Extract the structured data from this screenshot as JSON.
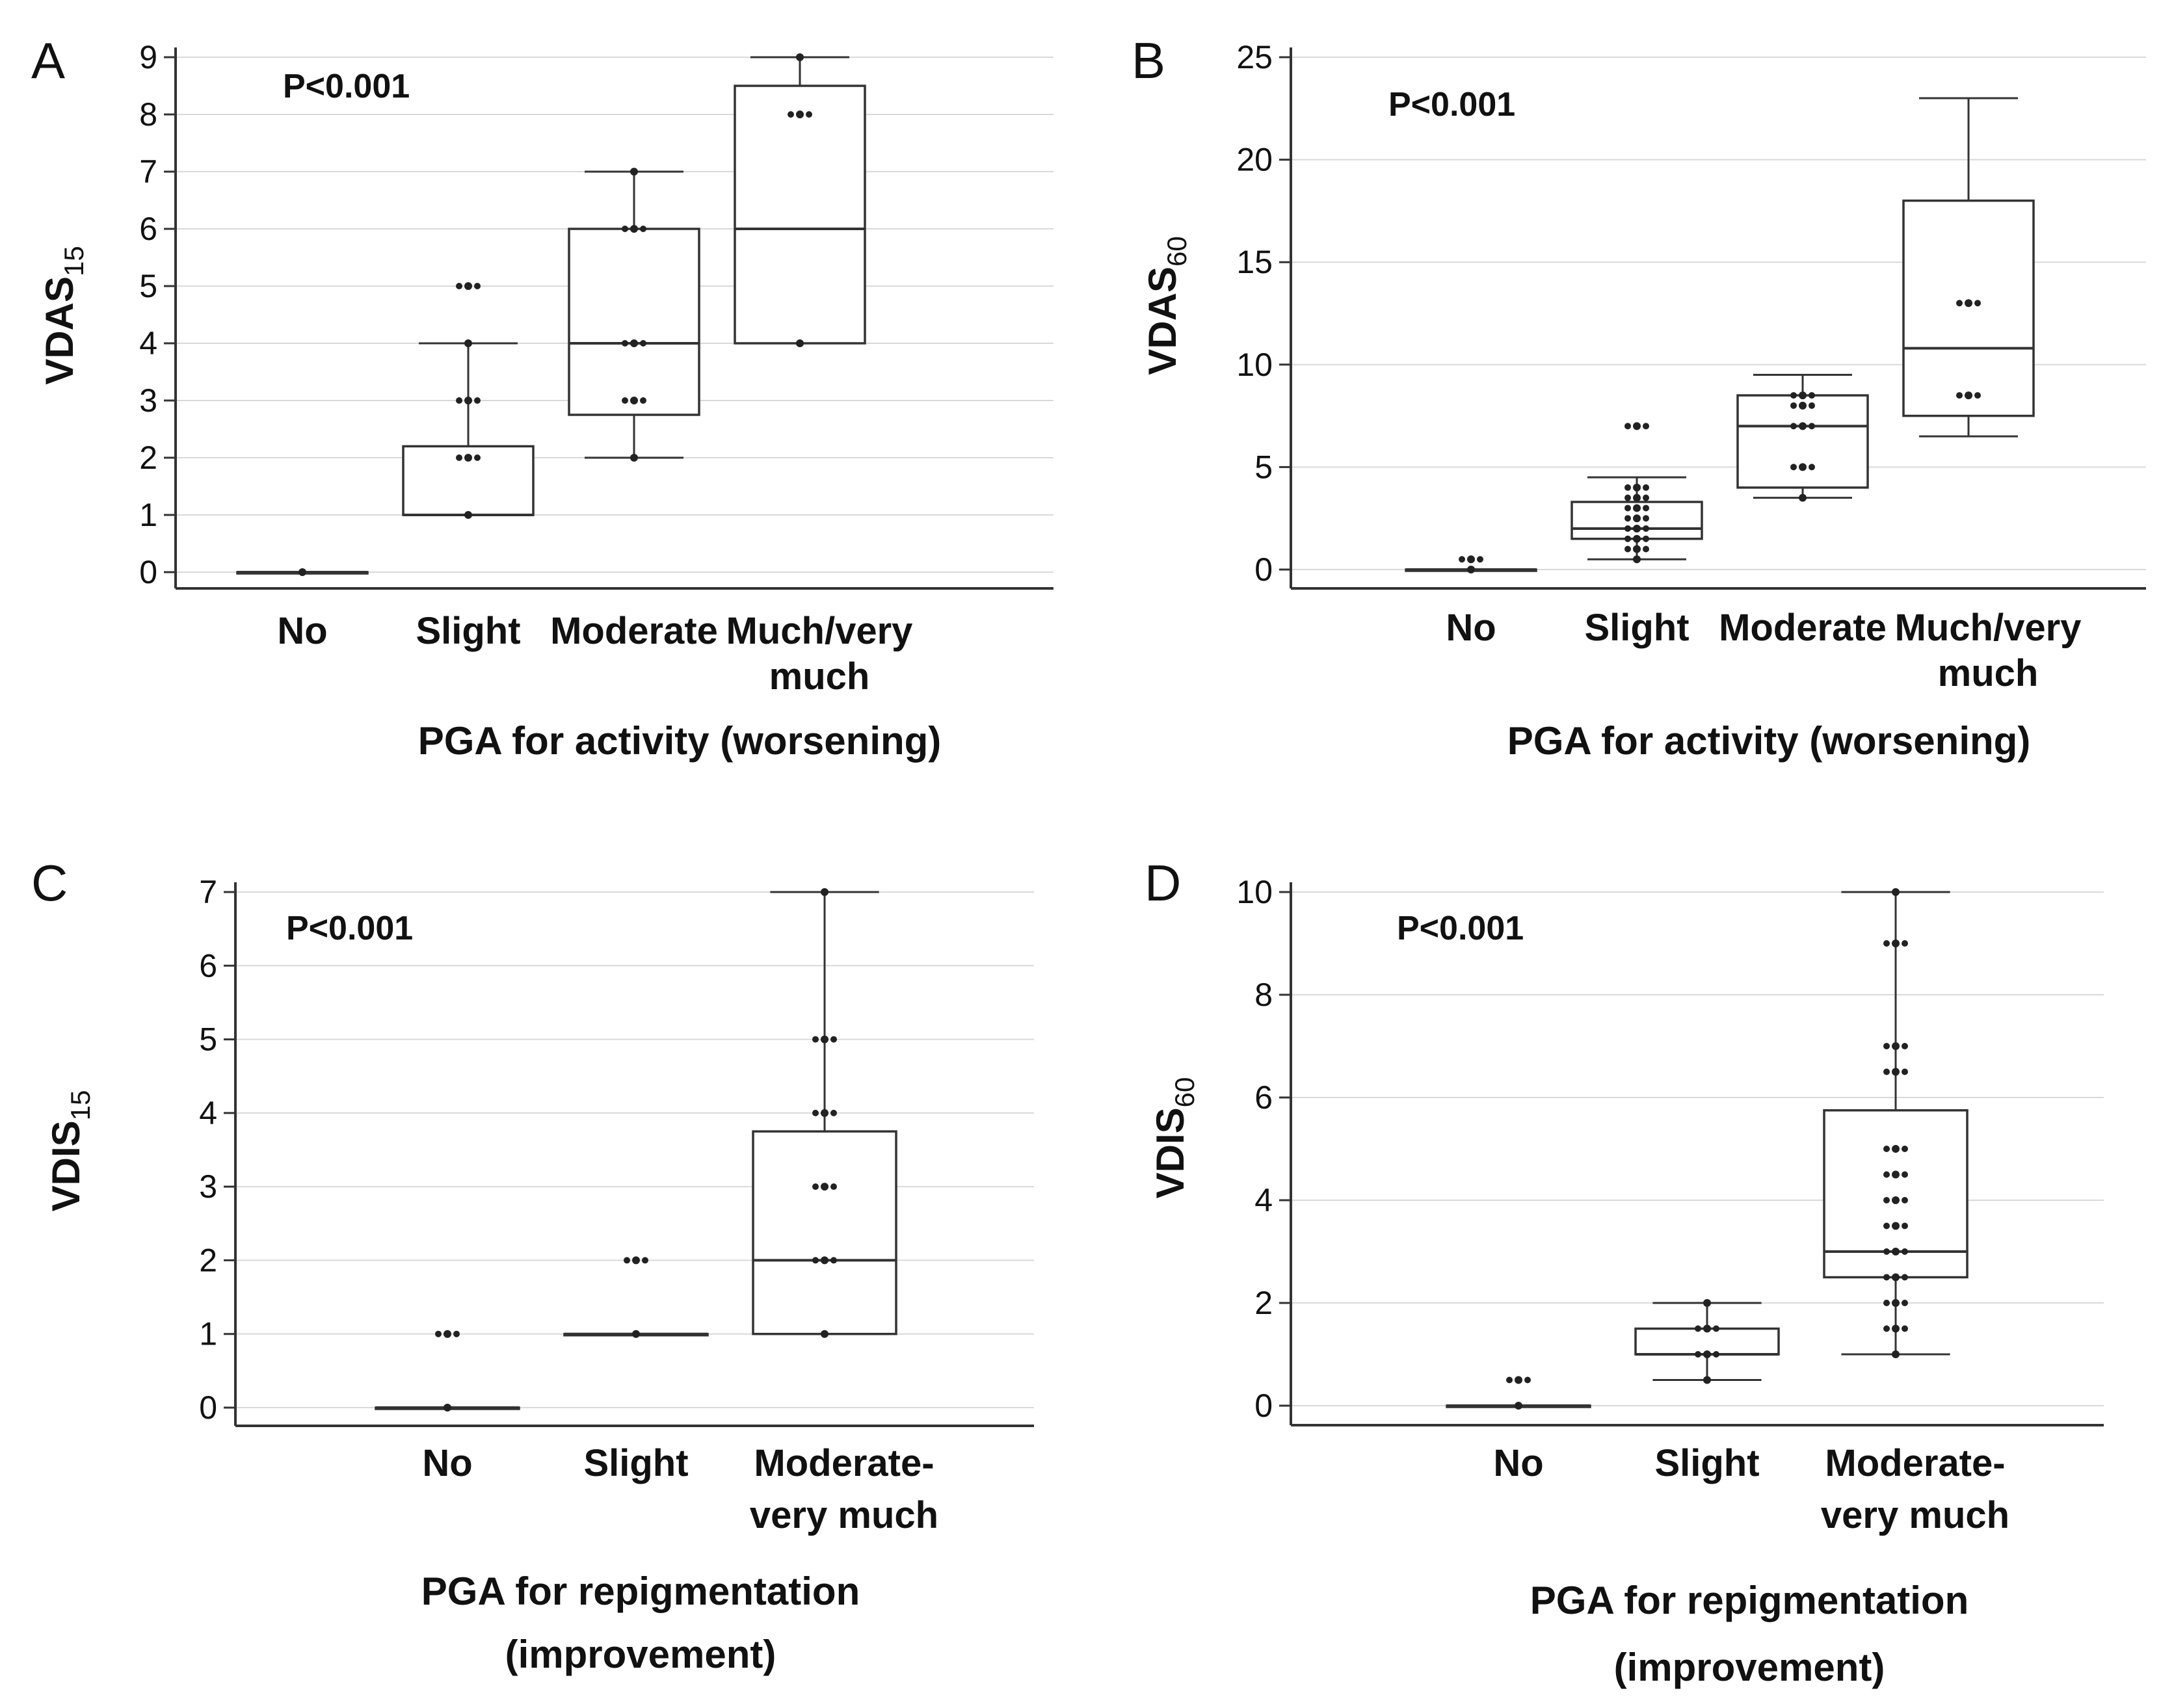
{
  "chart_data": [
    {
      "type": "box",
      "panel": "A",
      "title": "",
      "p_value": "P<0.001",
      "ylabel_main": "VDAS",
      "ylabel_sub": "15",
      "ylim": [
        0,
        9
      ],
      "yticks": [
        0,
        1,
        2,
        3,
        4,
        5,
        6,
        7,
        8,
        9
      ],
      "xlabel_lines": [
        "PGA for activity (worsening)"
      ],
      "categories": [
        {
          "label": [
            "No"
          ],
          "min": 0,
          "q1": 0,
          "median": 0,
          "q3": 0,
          "max": 0,
          "points": [
            0
          ]
        },
        {
          "label": [
            "Slight"
          ],
          "min": 1,
          "q1": 1,
          "median": 1,
          "q3": 2.2,
          "max": 4,
          "points": [
            1,
            2,
            3,
            4,
            5
          ]
        },
        {
          "label": [
            "Moderate"
          ],
          "min": 2,
          "q1": 2.75,
          "median": 4,
          "q3": 6,
          "max": 7,
          "points": [
            2,
            3,
            4,
            6,
            7
          ]
        },
        {
          "label": [
            "Much/very",
            "much"
          ],
          "min": 4,
          "q1": 4,
          "median": 6,
          "q3": 8.5,
          "max": 9,
          "points": [
            4,
            8,
            9
          ]
        }
      ]
    },
    {
      "type": "box",
      "panel": "B",
      "title": "",
      "p_value": "P<0.001",
      "ylabel_main": "VDAS",
      "ylabel_sub": "60",
      "ylim": [
        0,
        25
      ],
      "yticks": [
        0,
        5,
        10,
        15,
        20,
        25
      ],
      "xlabel_lines": [
        "PGA for activity (worsening)"
      ],
      "categories": [
        {
          "label": [
            "No"
          ],
          "min": 0,
          "q1": 0,
          "median": 0,
          "q3": 0,
          "max": 0,
          "points": [
            0,
            0.5
          ]
        },
        {
          "label": [
            "Slight"
          ],
          "min": 0.5,
          "q1": 1.5,
          "median": 2,
          "q3": 3.3,
          "max": 4.5,
          "points": [
            0.5,
            1,
            1.5,
            2,
            2.5,
            3,
            3.5,
            4,
            7
          ]
        },
        {
          "label": [
            "Moderate"
          ],
          "min": 3.5,
          "q1": 4,
          "median": 7,
          "q3": 8.5,
          "max": 9.5,
          "points": [
            3.5,
            5,
            7,
            8,
            8.5
          ]
        },
        {
          "label": [
            "Much/very",
            "much"
          ],
          "min": 6.5,
          "q1": 7.5,
          "median": 10.8,
          "q3": 18,
          "max": 23,
          "points": [
            8.5,
            13
          ]
        }
      ]
    },
    {
      "type": "box",
      "panel": "C",
      "title": "",
      "p_value": "P<0.001",
      "ylabel_main": "VDIS",
      "ylabel_sub": "15",
      "ylim": [
        0,
        7
      ],
      "yticks": [
        0,
        1,
        2,
        3,
        4,
        5,
        6,
        7
      ],
      "xlabel_lines": [
        "PGA for repigmentation",
        "(improvement)"
      ],
      "categories": [
        {
          "label": [
            "No"
          ],
          "min": 0,
          "q1": 0,
          "median": 0,
          "q3": 0,
          "max": 0,
          "points": [
            0,
            1
          ]
        },
        {
          "label": [
            "Slight"
          ],
          "min": 1,
          "q1": 1,
          "median": 1,
          "q3": 1,
          "max": 1,
          "points": [
            1,
            2
          ]
        },
        {
          "label": [
            "Moderate-",
            "very much"
          ],
          "min": 1,
          "q1": 1,
          "median": 2,
          "q3": 3.75,
          "max": 7,
          "points": [
            1,
            2,
            3,
            4,
            5,
            7
          ]
        }
      ]
    },
    {
      "type": "box",
      "panel": "D",
      "title": "",
      "p_value": "P<0.001",
      "ylabel_main": "VDIS",
      "ylabel_sub": "60",
      "ylim": [
        0,
        10
      ],
      "yticks": [
        0,
        2,
        4,
        6,
        8,
        10
      ],
      "xlabel_lines": [
        "PGA for repigmentation",
        "(improvement)"
      ],
      "categories": [
        {
          "label": [
            "No"
          ],
          "min": 0,
          "q1": 0,
          "median": 0,
          "q3": 0,
          "max": 0,
          "points": [
            0,
            0.5
          ]
        },
        {
          "label": [
            "Slight"
          ],
          "min": 0.5,
          "q1": 1,
          "median": 1,
          "q3": 1.5,
          "max": 2,
          "points": [
            0.5,
            1,
            1.5,
            2
          ]
        },
        {
          "label": [
            "Moderate-",
            "very much"
          ],
          "min": 1,
          "q1": 2.5,
          "median": 3,
          "q3": 5.75,
          "max": 10,
          "points": [
            1,
            1.5,
            2,
            2.5,
            3,
            3.5,
            4,
            4.5,
            5,
            6.5,
            7,
            9,
            10
          ]
        }
      ]
    }
  ]
}
